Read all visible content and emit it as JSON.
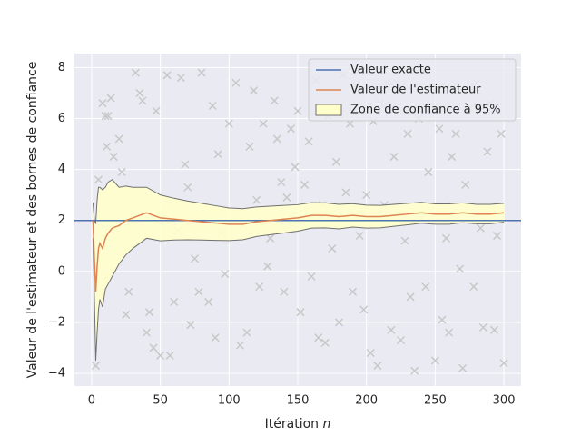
{
  "chart_data": {
    "type": "line",
    "xlabel": "Itération",
    "xlabel_var": "n",
    "ylabel": "Valeur de l'estimateur et des bornes de confiance",
    "xlim": [
      -12.5,
      312.5
    ],
    "ylim": [
      -4.5,
      8.55
    ],
    "xticks": [
      0,
      50,
      100,
      150,
      200,
      250,
      300
    ],
    "yticks": [
      {
        "value": -4,
        "label": "−4"
      },
      {
        "value": -2,
        "label": "−2"
      },
      0,
      2,
      4,
      6,
      8
    ],
    "grid": true,
    "legend": "upper right",
    "background": "#eaeaf2",
    "reference": {
      "name": "Valeur exacte",
      "color": "#4c72b0",
      "value": 2
    },
    "x": [
      1,
      2,
      3,
      4,
      5,
      6,
      8,
      10,
      12,
      15,
      20,
      25,
      30,
      35,
      40,
      50,
      60,
      70,
      80,
      90,
      100,
      110,
      120,
      130,
      140,
      150,
      160,
      170,
      180,
      190,
      200,
      210,
      220,
      230,
      240,
      250,
      260,
      270,
      280,
      290,
      300
    ],
    "estimator": {
      "name": "Valeur de l'estimateur",
      "color": "#dd8452",
      "values": [
        2.0,
        0.5,
        -0.8,
        0.2,
        0.9,
        1.1,
        0.9,
        1.3,
        1.5,
        1.7,
        1.8,
        2.0,
        2.1,
        2.2,
        2.3,
        2.1,
        2.05,
        2.0,
        1.95,
        1.9,
        1.85,
        1.85,
        1.95,
        2.0,
        2.05,
        2.1,
        2.2,
        2.2,
        2.15,
        2.2,
        2.15,
        2.15,
        2.2,
        2.25,
        2.3,
        2.25,
        2.25,
        2.3,
        2.25,
        2.25,
        2.3
      ]
    },
    "band": {
      "name": "Zone de confiance à 95%",
      "color": "#ffffcc",
      "edge_color": "#707070",
      "upper": [
        2.7,
        2.0,
        1.9,
        2.8,
        3.3,
        3.3,
        3.2,
        3.3,
        3.5,
        3.6,
        3.3,
        3.35,
        3.3,
        3.3,
        3.3,
        3.0,
        2.87,
        2.76,
        2.67,
        2.58,
        2.49,
        2.46,
        2.53,
        2.56,
        2.59,
        2.62,
        2.7,
        2.69,
        2.63,
        2.66,
        2.6,
        2.59,
        2.63,
        2.67,
        2.71,
        2.65,
        2.65,
        2.69,
        2.63,
        2.63,
        2.67
      ],
      "lower": [
        1.3,
        -1.0,
        -3.5,
        -2.4,
        -1.5,
        -1.1,
        -1.4,
        -0.7,
        -0.5,
        -0.2,
        0.3,
        0.65,
        0.9,
        1.1,
        1.3,
        1.2,
        1.23,
        1.24,
        1.23,
        1.22,
        1.21,
        1.24,
        1.37,
        1.44,
        1.51,
        1.58,
        1.7,
        1.71,
        1.67,
        1.74,
        1.7,
        1.71,
        1.77,
        1.83,
        1.89,
        1.85,
        1.85,
        1.91,
        1.87,
        1.87,
        1.93
      ]
    },
    "samples": {
      "color": "#c8c8c8",
      "x": [
        3,
        5,
        8,
        10,
        12,
        14,
        11,
        16,
        20,
        22,
        25,
        27,
        32,
        35,
        37,
        40,
        42,
        45,
        47,
        50,
        55,
        57,
        60,
        63,
        65,
        68,
        70,
        72,
        75,
        78,
        80,
        85,
        88,
        90,
        92,
        95,
        97,
        100,
        105,
        108,
        110,
        113,
        115,
        118,
        120,
        122,
        125,
        128,
        130,
        133,
        135,
        138,
        140,
        142,
        145,
        148,
        150,
        152,
        155,
        158,
        160,
        163,
        165,
        168,
        170,
        172,
        175,
        178,
        180,
        183,
        185,
        188,
        190,
        192,
        195,
        198,
        200,
        203,
        205,
        208,
        210,
        213,
        215,
        218,
        220,
        222,
        225,
        228,
        230,
        232,
        235,
        238,
        240,
        243,
        245,
        248,
        250,
        253,
        255,
        258,
        260,
        262,
        265,
        268,
        270,
        272,
        275,
        278,
        280,
        283,
        285,
        288,
        290,
        293,
        295,
        298,
        300
      ],
      "values": [
        -3.7,
        3.6,
        6.6,
        6.1,
        6.1,
        6.8,
        4.9,
        4.5,
        5.2,
        3.9,
        -1.7,
        -0.8,
        7.8,
        7.0,
        6.7,
        -2.4,
        -1.6,
        -3.0,
        6.3,
        -3.3,
        7.7,
        -3.3,
        -1.2,
        1.6,
        7.6,
        4.2,
        3.3,
        -2.1,
        0.5,
        -0.8,
        7.8,
        -1.2,
        6.5,
        -2.6,
        4.6,
        1.5,
        -0.1,
        5.8,
        7.4,
        -2.9,
        1.8,
        -2.4,
        4.9,
        7.1,
        2.8,
        -0.6,
        5.8,
        0.2,
        1.3,
        6.7,
        5.2,
        3.5,
        -0.8,
        2.9,
        5.6,
        4.1,
        6.3,
        -1.6,
        3.4,
        5.1,
        -0.2,
        7.5,
        -2.6,
        2.6,
        -2.8,
        6.1,
        0.9,
        4.3,
        -2.0,
        7.7,
        3.1,
        5.8,
        -0.8,
        7.3,
        1.4,
        -1.5,
        3.0,
        -3.2,
        5.9,
        -3.7,
        6.6,
        2.6,
        7.4,
        -2.3,
        4.5,
        7.4,
        -2.7,
        1.2,
        5.4,
        -1.0,
        -3.9,
        6.0,
        2.1,
        -0.6,
        3.9,
        7.2,
        -3.5,
        5.6,
        -1.9,
        1.3,
        -2.4,
        4.5,
        5.4,
        0.1,
        -3.8,
        3.4,
        6.4,
        -0.6,
        7.4,
        1.7,
        -2.2,
        4.7,
        6.6,
        -2.3,
        1.4,
        5.4,
        -3.6
      ]
    }
  }
}
